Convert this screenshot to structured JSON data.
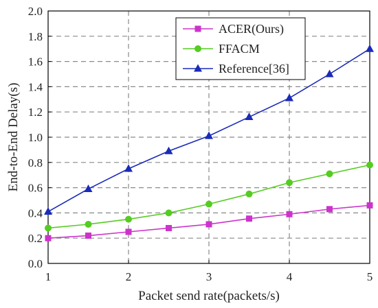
{
  "chart_data": {
    "type": "line",
    "xlabel": "Packet send rate(packets/s)",
    "ylabel": "End-to-End Delay(s)",
    "xlim": [
      1,
      5
    ],
    "ylim": [
      0.0,
      2.0
    ],
    "xticks": [
      1,
      2,
      3,
      4,
      5
    ],
    "yticks": [
      0.0,
      0.2,
      0.4,
      0.6,
      0.8,
      1.0,
      1.2,
      1.4,
      1.6,
      1.8,
      2.0
    ],
    "xtick_labels": [
      "1",
      "2",
      "3",
      "4",
      "5"
    ],
    "ytick_labels": [
      "0.0",
      "0.2",
      "0.4",
      "0.6",
      "0.8",
      "1.0",
      "1.2",
      "1.4",
      "1.6",
      "1.8",
      "2.0"
    ],
    "grid": true,
    "grid_style": "dashed",
    "legend_position": "top-right",
    "x": [
      1,
      1.5,
      2,
      2.5,
      3,
      3.5,
      4,
      4.5,
      5
    ],
    "series": [
      {
        "name": "ACER(Ours)",
        "color": "#cc33cc",
        "marker": "square",
        "values": [
          0.2,
          0.22,
          0.25,
          0.28,
          0.31,
          0.355,
          0.39,
          0.43,
          0.46
        ]
      },
      {
        "name": "FFACM",
        "color": "#55cc22",
        "marker": "circle",
        "values": [
          0.28,
          0.31,
          0.35,
          0.4,
          0.47,
          0.55,
          0.64,
          0.71,
          0.78
        ]
      },
      {
        "name": "Reference[36]",
        "color": "#1a2bb8",
        "marker": "triangle",
        "values": [
          0.41,
          0.59,
          0.75,
          0.89,
          1.01,
          1.16,
          1.31,
          1.5,
          1.7
        ]
      }
    ]
  }
}
